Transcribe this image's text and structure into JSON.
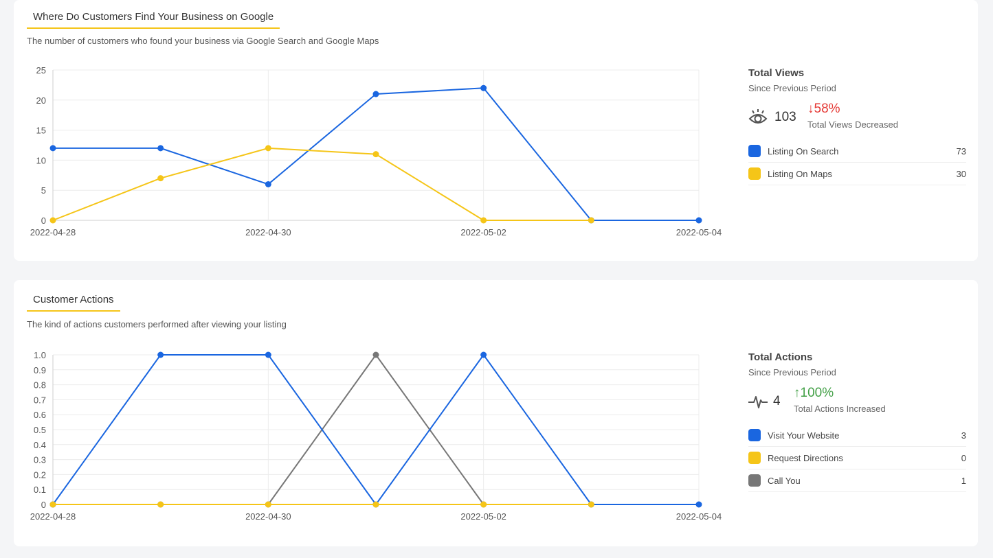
{
  "colors": {
    "blue": "#1a66e0",
    "yellow": "#f5c518",
    "gray": "#777777",
    "red": "#e53935",
    "green": "#43a047"
  },
  "views": {
    "title": "Where Do Customers Find Your Business on Google",
    "subtitle": "The number of customers who found your business via Google Search and Google Maps",
    "stats": {
      "title": "Total Views",
      "since": "Since Previous Period",
      "icon": "eye-icon",
      "total": "103",
      "change": "58%",
      "change_direction": "down",
      "change_caption": "Total Views Decreased",
      "legend": [
        {
          "label": "Listing On Search",
          "value": "73",
          "color": "#1a66e0"
        },
        {
          "label": "Listing On Maps",
          "value": "30",
          "color": "#f5c518"
        }
      ]
    },
    "chart_data": {
      "type": "line",
      "x": [
        "2022-04-28",
        "2022-04-29",
        "2022-04-30",
        "2022-05-01",
        "2022-05-02",
        "2022-05-03",
        "2022-05-04"
      ],
      "x_tick_labels": [
        "2022-04-28",
        "2022-04-30",
        "2022-05-02",
        "2022-05-04"
      ],
      "ylim": [
        0,
        25
      ],
      "y_ticks": [
        0,
        5,
        10,
        15,
        20,
        25
      ],
      "y_tick_labels": [
        "0",
        "5",
        "10",
        "15",
        "20",
        "25"
      ],
      "grid": true,
      "series": [
        {
          "values": [
            12,
            12,
            6,
            21,
            22,
            0,
            0
          ],
          "color": "#1a66e0",
          "last_point_index": 6
        },
        {
          "values": [
            0,
            7,
            12,
            11,
            0,
            0,
            0
          ],
          "color": "#f5c518",
          "last_point_index": 5
        }
      ]
    }
  },
  "actions": {
    "title": "Customer Actions",
    "subtitle": "The kind of actions customers performed after viewing your listing",
    "stats": {
      "title": "Total Actions",
      "since": "Since Previous Period",
      "icon": "activity-pulse-icon",
      "total": "4",
      "change": "100%",
      "change_direction": "up",
      "change_caption": "Total Actions Increased",
      "legend": [
        {
          "label": "Visit Your Website",
          "value": "3",
          "color": "#1a66e0"
        },
        {
          "label": "Request Directions",
          "value": "0",
          "color": "#f5c518"
        },
        {
          "label": "Call You",
          "value": "1",
          "color": "#777777"
        }
      ]
    },
    "chart_data": {
      "type": "line",
      "x": [
        "2022-04-28",
        "2022-04-29",
        "2022-04-30",
        "2022-05-01",
        "2022-05-02",
        "2022-05-03",
        "2022-05-04"
      ],
      "x_tick_labels": [
        "2022-04-28",
        "2022-04-30",
        "2022-05-02",
        "2022-05-04"
      ],
      "ylim": [
        0,
        1
      ],
      "y_ticks": [
        0,
        0.1,
        0.2,
        0.3,
        0.4,
        0.5,
        0.6,
        0.7,
        0.8,
        0.9,
        1.0
      ],
      "y_tick_labels": [
        "0",
        "0.1",
        "0.2",
        "0.3",
        "0.4",
        "0.5",
        "0.6",
        "0.7",
        "0.8",
        "0.9",
        "1.0"
      ],
      "grid": true,
      "series": [
        {
          "values": [
            0,
            0,
            0,
            1,
            0,
            0,
            0
          ],
          "color": "#777777",
          "last_point_index": 4
        },
        {
          "values": [
            0,
            1,
            1,
            0,
            1,
            0,
            0
          ],
          "color": "#1a66e0",
          "last_point_index": 6
        },
        {
          "values": [
            0,
            0,
            0,
            0,
            0,
            0,
            0
          ],
          "color": "#f5c518",
          "last_point_index": 5
        }
      ]
    }
  }
}
